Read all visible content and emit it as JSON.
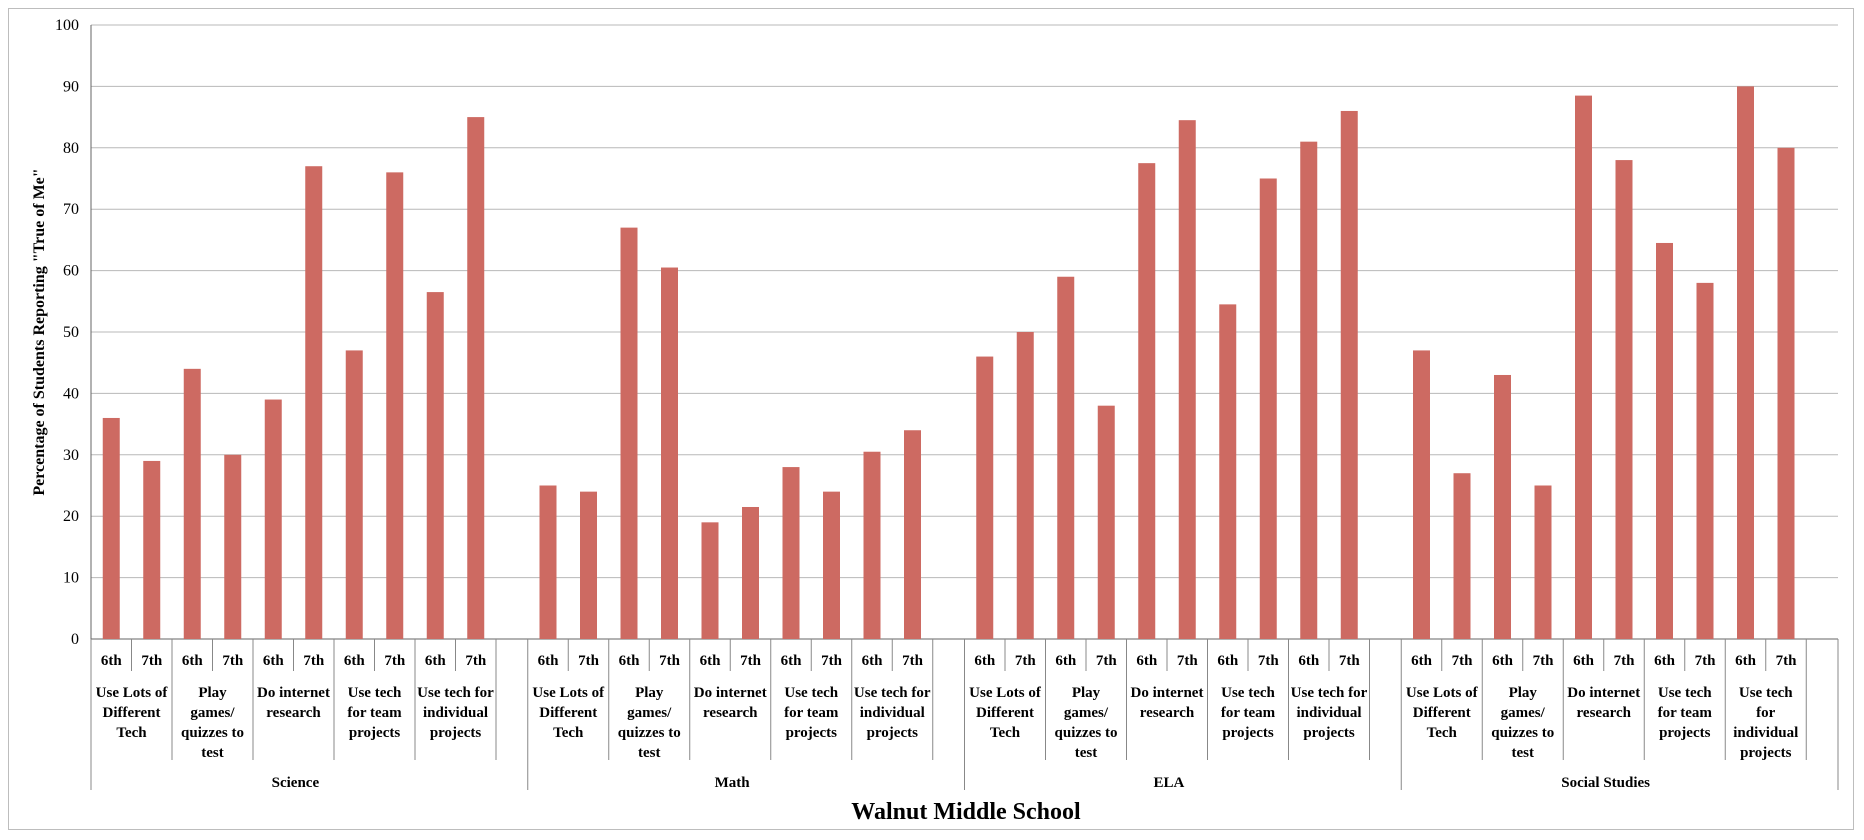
{
  "chart_data": {
    "type": "bar",
    "xlabel": "Walnut Middle School",
    "ylabel": "Percentage of Students Reporting \"True of Me\"",
    "ylim": [
      0,
      100
    ],
    "yticks": [
      0,
      10,
      20,
      30,
      40,
      50,
      60,
      70,
      80,
      90,
      100
    ],
    "grid": true,
    "bar_color": "#cd6a62",
    "grades": [
      "6th",
      "7th"
    ],
    "groups": [
      {
        "subject": "Science",
        "categories": [
          {
            "label": "Use Lots of Different Tech",
            "lines": [
              "Use Lots of",
              "Different",
              "Tech"
            ],
            "values": [
              36,
              29
            ]
          },
          {
            "label": "Play games/ quizzes to test",
            "lines": [
              "Play",
              "games/",
              "quizzes to",
              "test"
            ],
            "values": [
              44,
              30
            ]
          },
          {
            "label": "Do internet research",
            "lines": [
              "Do internet",
              "research"
            ],
            "values": [
              39,
              77
            ]
          },
          {
            "label": "Use tech for team projects",
            "lines": [
              "Use tech",
              "for team",
              "projects"
            ],
            "values": [
              47,
              76
            ]
          },
          {
            "label": "Use tech for individual projects",
            "lines": [
              "Use tech for",
              "individual",
              "projects"
            ],
            "values": [
              56.5,
              85
            ]
          }
        ]
      },
      {
        "subject": "Math",
        "categories": [
          {
            "label": "Use Lots of Different Tech",
            "lines": [
              "Use Lots of",
              "Different",
              "Tech"
            ],
            "values": [
              25,
              24
            ]
          },
          {
            "label": "Play games/ quizzes to test",
            "lines": [
              "Play",
              "games/",
              "quizzes to",
              "test"
            ],
            "values": [
              67,
              60.5
            ]
          },
          {
            "label": "Do internet research",
            "lines": [
              "Do internet",
              "research"
            ],
            "values": [
              19,
              21.5
            ]
          },
          {
            "label": "Use tech for team projects",
            "lines": [
              "Use tech",
              "for team",
              "projects"
            ],
            "values": [
              28,
              24
            ]
          },
          {
            "label": "Use tech for individual projects",
            "lines": [
              "Use tech for",
              "individual",
              "projects"
            ],
            "values": [
              30.5,
              34
            ]
          }
        ]
      },
      {
        "subject": "ELA",
        "categories": [
          {
            "label": "Use Lots of Different Tech",
            "lines": [
              "Use Lots of",
              "Different",
              "Tech"
            ],
            "values": [
              46,
              50
            ]
          },
          {
            "label": "Play games/ quizzes to test",
            "lines": [
              "Play",
              "games/",
              "quizzes to",
              "test"
            ],
            "values": [
              59,
              38
            ]
          },
          {
            "label": "Do internet research",
            "lines": [
              "Do internet",
              "research"
            ],
            "values": [
              77.5,
              84.5
            ]
          },
          {
            "label": "Use tech for team projects",
            "lines": [
              "Use tech",
              "for team",
              "projects"
            ],
            "values": [
              54.5,
              75
            ]
          },
          {
            "label": "Use tech for individual projects",
            "lines": [
              "Use tech for",
              "individual",
              "projects"
            ],
            "values": [
              81,
              86
            ]
          }
        ]
      },
      {
        "subject": "Social Studies",
        "categories": [
          {
            "label": "Use Lots of Different Tech",
            "lines": [
              "Use Lots of",
              "Different",
              "Tech"
            ],
            "values": [
              47,
              27
            ]
          },
          {
            "label": "Play games/ quizzes to test",
            "lines": [
              "Play",
              "games/",
              "quizzes to",
              "test"
            ],
            "values": [
              43,
              25
            ]
          },
          {
            "label": "Do internet research",
            "lines": [
              "Do internet",
              "research"
            ],
            "values": [
              88.5,
              78
            ]
          },
          {
            "label": "Use tech for team projects",
            "lines": [
              "Use tech",
              "for team",
              "projects"
            ],
            "values": [
              64.5,
              58
            ]
          },
          {
            "label": "Use tech for individual projects",
            "lines": [
              "Use tech",
              "for",
              "individual",
              "projects"
            ],
            "values": [
              90,
              80
            ]
          }
        ]
      }
    ]
  }
}
